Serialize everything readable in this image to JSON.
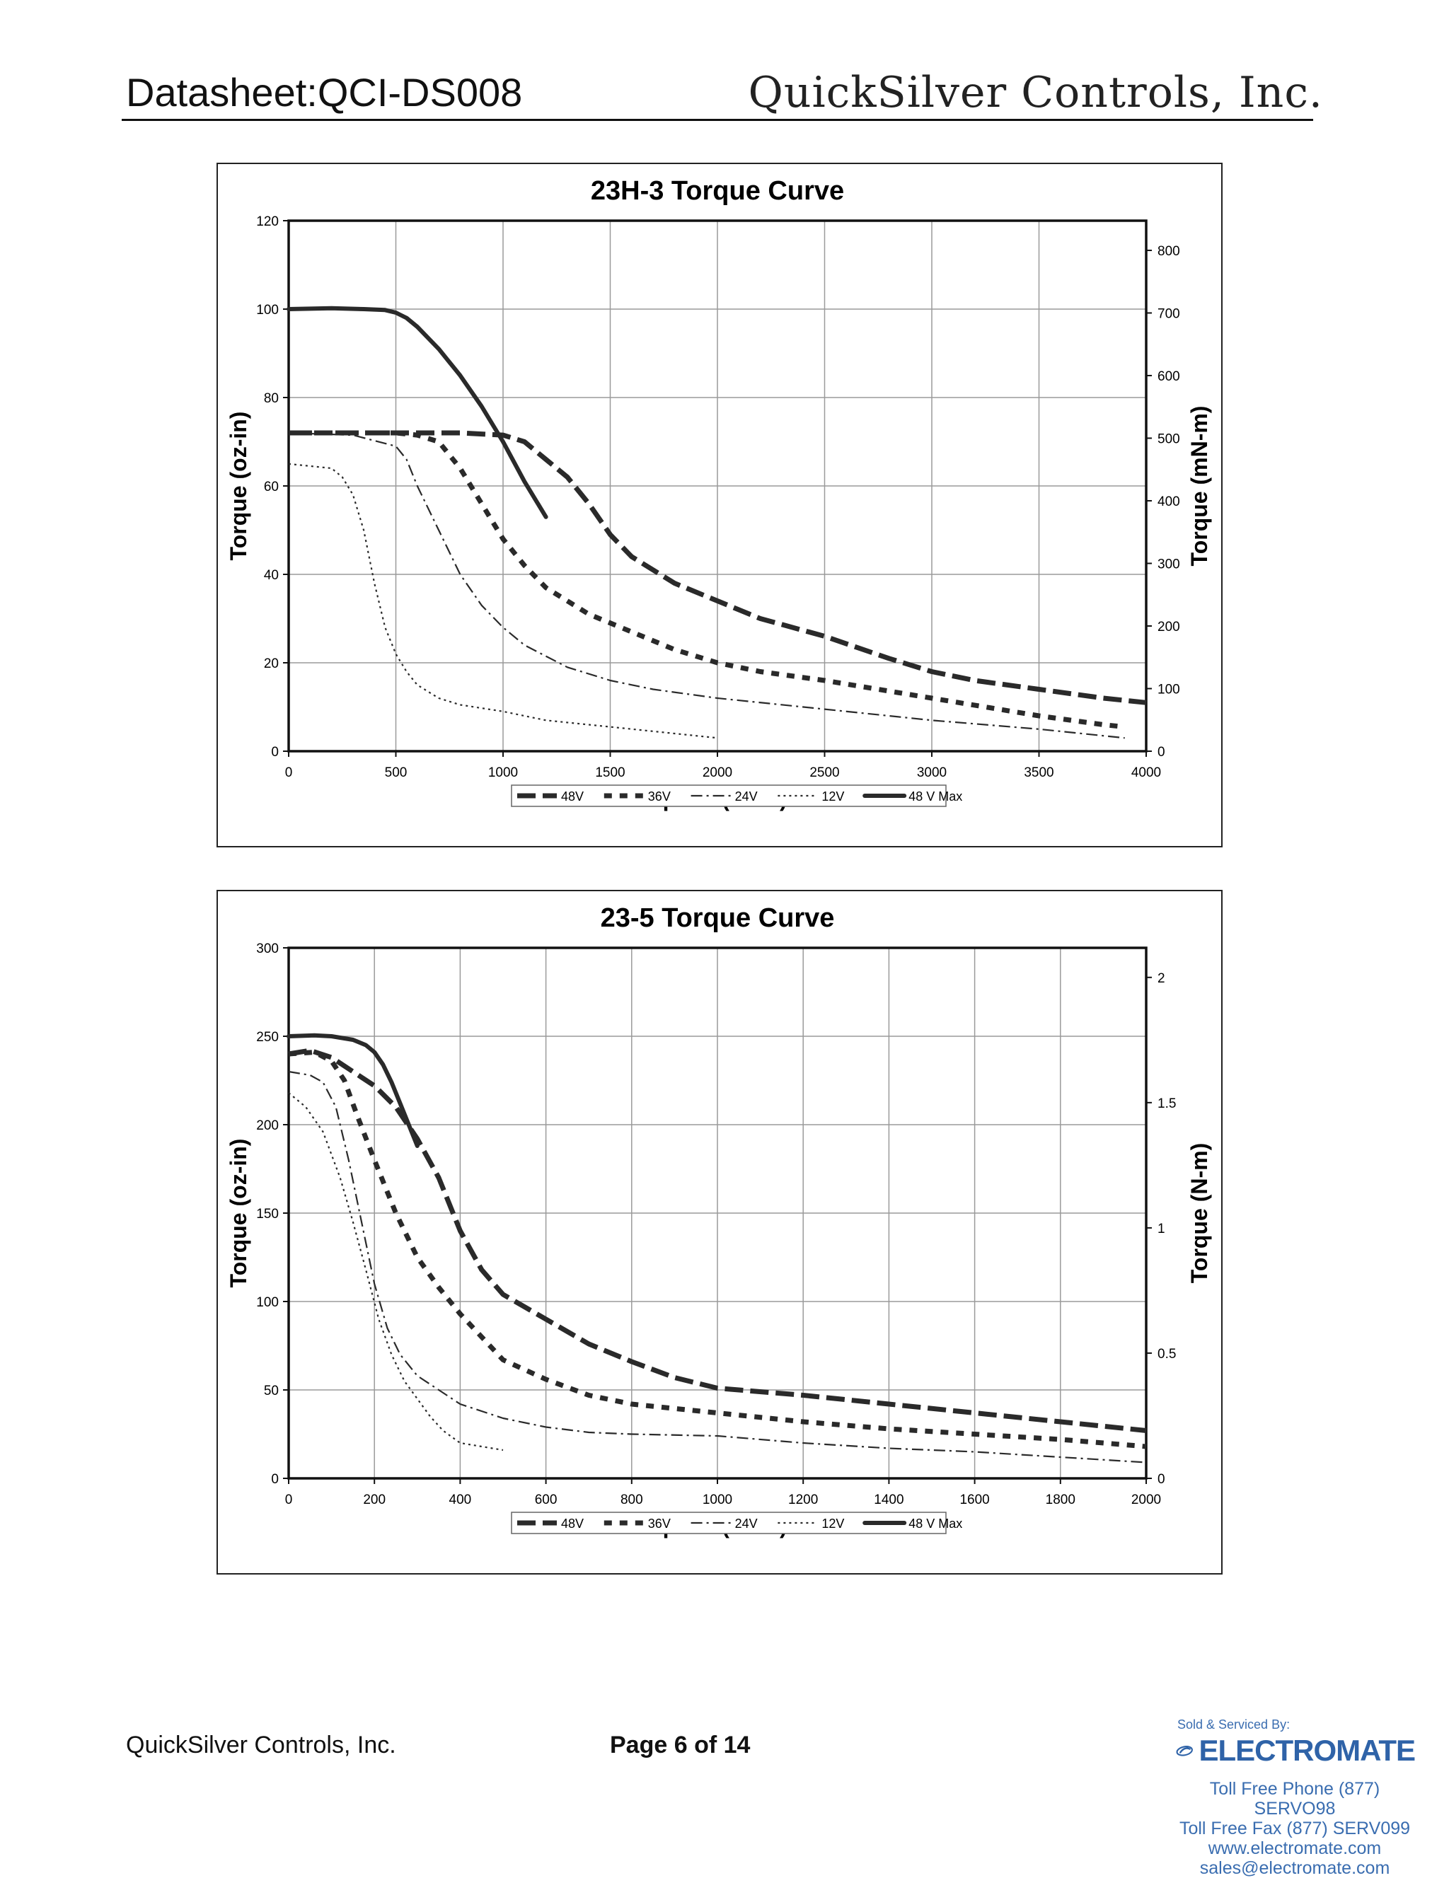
{
  "header": {
    "left": "Datasheet:QCI-DS008",
    "right": "QuickSilver Controls, Inc."
  },
  "footer": {
    "company": "QuickSilver Controls, Inc.",
    "page": "Page 6 of 14"
  },
  "vendor": {
    "sold_by": "Sold & Serviced By:",
    "name": "ELECTROMATE",
    "phone": "Toll Free Phone  (877) SERVO98",
    "fax": "Toll Free Fax  (877) SERV099",
    "web": "www.electromate.com",
    "email": "sales@electromate.com",
    "logo_icon": "electromate-swoosh-logo",
    "color": "#2f63a8"
  },
  "chart_data": [
    {
      "type": "line",
      "title": "23H-3 Torque Curve",
      "xlabel": "Speed (RPM)",
      "ylabel": "Torque (oz-in)",
      "y2label": "Torque (mN-m)",
      "xlim": [
        0,
        4000
      ],
      "ylim": [
        0,
        120
      ],
      "y2lim": [
        0,
        847.4
      ],
      "xticks": [
        "0",
        "500",
        "1000",
        "1500",
        "2000",
        "2500",
        "3000",
        "3500",
        "4000"
      ],
      "yticks": [
        "0",
        "20",
        "40",
        "60",
        "80",
        "100",
        "120"
      ],
      "y2ticks": [
        "0",
        "100",
        "200",
        "300",
        "400",
        "500",
        "600",
        "700",
        "800"
      ],
      "grid": true,
      "legend": "bottom",
      "series": [
        {
          "name": "48V",
          "dash": "48V",
          "x": [
            0,
            500,
            800,
            1000,
            1100,
            1200,
            1300,
            1400,
            1500,
            1600,
            1800,
            2000,
            2200,
            2500,
            2800,
            3000,
            3200,
            3500,
            3800,
            4000
          ],
          "y": [
            72,
            72,
            72,
            71.5,
            70,
            66,
            62,
            56,
            49,
            44,
            38,
            34,
            30,
            26,
            21,
            18,
            16,
            14,
            12,
            11
          ]
        },
        {
          "name": "36V",
          "dash": "36V",
          "x": [
            0,
            500,
            600,
            700,
            800,
            900,
            1000,
            1100,
            1200,
            1400,
            1600,
            1800,
            2000,
            2200,
            2500,
            3000,
            3500,
            3800,
            3900
          ],
          "y": [
            72,
            72,
            71.5,
            70,
            64,
            56,
            48,
            42,
            37,
            31,
            27,
            23,
            20,
            18,
            16,
            12,
            8,
            6,
            5.5
          ]
        },
        {
          "name": "24V",
          "dash": "24V",
          "x": [
            0,
            300,
            500,
            550,
            600,
            700,
            800,
            900,
            1000,
            1100,
            1300,
            1500,
            1700,
            2000,
            2500,
            3000,
            3500,
            3900
          ],
          "y": [
            72,
            71.5,
            69,
            66,
            60,
            50,
            40,
            33,
            28,
            24,
            19,
            16,
            14,
            12,
            9.5,
            7,
            5,
            3
          ]
        },
        {
          "name": "12V",
          "dash": "12V",
          "x": [
            0,
            200,
            250,
            300,
            350,
            400,
            450,
            500,
            550,
            600,
            700,
            800,
            1000,
            1200,
            1500,
            1800,
            2000
          ],
          "y": [
            65,
            64,
            62,
            58,
            50,
            38,
            28,
            22,
            18,
            15,
            12,
            10.5,
            9,
            7,
            5.5,
            4,
            3
          ]
        },
        {
          "name": "48 V Max",
          "dash": "max",
          "x": [
            0,
            200,
            350,
            450,
            500,
            550,
            600,
            700,
            800,
            900,
            1000,
            1100,
            1200
          ],
          "y": [
            100,
            100.2,
            100,
            99.8,
            99.2,
            98,
            96,
            91,
            85,
            78,
            70,
            61,
            53
          ]
        }
      ]
    },
    {
      "type": "line",
      "title": "23-5 Torque Curve",
      "xlabel": "Speed (RPM)",
      "ylabel": "Torque (oz-in)",
      "y2label": "Torque (N-m)",
      "xlim": [
        0,
        2000
      ],
      "ylim": [
        0,
        300
      ],
      "y2lim": [
        0,
        2.118
      ],
      "xticks": [
        "0",
        "200",
        "400",
        "600",
        "800",
        "1000",
        "1200",
        "1400",
        "1600",
        "1800",
        "2000"
      ],
      "yticks": [
        "0",
        "50",
        "100",
        "150",
        "200",
        "250",
        "300"
      ],
      "y2ticks": [
        "0",
        "0.5",
        "1",
        "1.5",
        "2"
      ],
      "grid": true,
      "legend": "bottom",
      "series": [
        {
          "name": "48V",
          "dash": "48V",
          "x": [
            0,
            50,
            100,
            150,
            200,
            250,
            300,
            350,
            400,
            450,
            500,
            600,
            700,
            800,
            900,
            1000,
            1200,
            1400,
            1600,
            1800,
            2000
          ],
          "y": [
            240,
            242,
            238,
            230,
            222,
            210,
            192,
            170,
            140,
            118,
            104,
            90,
            76,
            66,
            57,
            51,
            47,
            42,
            37,
            32,
            27
          ]
        },
        {
          "name": "36V",
          "dash": "36V",
          "x": [
            0,
            60,
            100,
            130,
            160,
            200,
            250,
            300,
            350,
            400,
            450,
            500,
            600,
            700,
            800,
            1000,
            1200,
            1400,
            1600,
            1800,
            2000
          ],
          "y": [
            240,
            241,
            236,
            225,
            205,
            180,
            150,
            125,
            108,
            93,
            80,
            67,
            56,
            47,
            42,
            37,
            32,
            28,
            25,
            22,
            18
          ]
        },
        {
          "name": "24V",
          "dash": "24V",
          "x": [
            0,
            50,
            80,
            110,
            140,
            170,
            200,
            230,
            260,
            300,
            350,
            400,
            500,
            600,
            700,
            800,
            1000,
            1200,
            1400,
            1600,
            1800,
            2000
          ],
          "y": [
            230,
            228,
            224,
            210,
            180,
            145,
            110,
            85,
            70,
            58,
            50,
            42,
            34,
            29,
            26,
            25,
            24,
            20,
            17,
            15,
            12,
            9
          ]
        },
        {
          "name": "12V",
          "dash": "12V",
          "x": [
            0,
            40,
            80,
            120,
            150,
            180,
            210,
            240,
            270,
            300,
            330,
            360,
            400,
            450,
            500
          ],
          "y": [
            218,
            210,
            196,
            170,
            145,
            118,
            90,
            70,
            55,
            45,
            35,
            27,
            20,
            18,
            16
          ]
        },
        {
          "name": "48 V Max",
          "dash": "max",
          "x": [
            0,
            60,
            100,
            150,
            180,
            200,
            220,
            240,
            260,
            280,
            300
          ],
          "y": [
            250,
            250.5,
            250,
            248,
            245,
            241,
            234,
            224,
            212,
            200,
            188
          ]
        }
      ]
    }
  ]
}
